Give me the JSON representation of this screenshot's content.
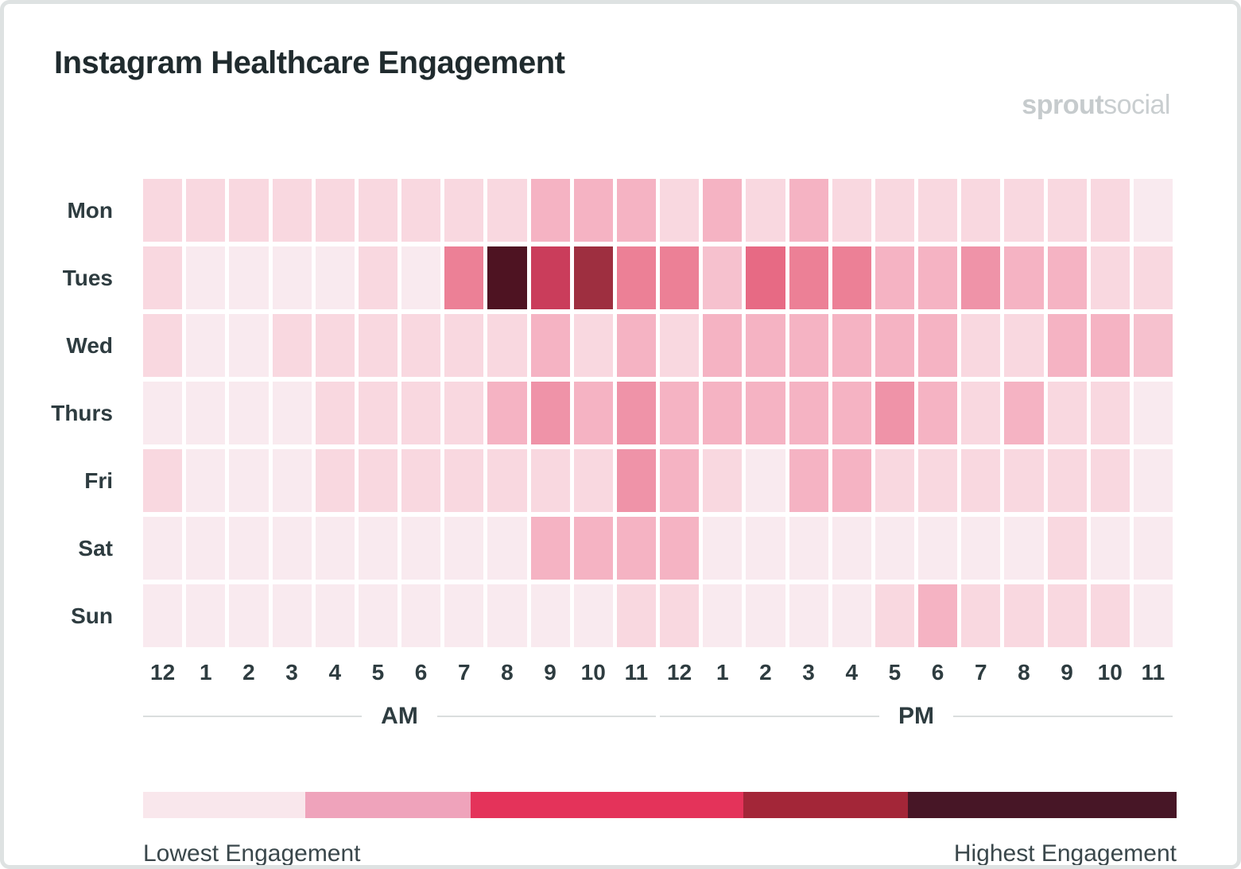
{
  "header": {
    "title": "Instagram Healthcare Engagement",
    "logo": {
      "bold": "sprout",
      "light": "social",
      "color": "#C6CBCD"
    }
  },
  "heatmap": {
    "days": [
      "Mon",
      "Tues",
      "Wed",
      "Thurs",
      "Fri",
      "Sat",
      "Sun"
    ],
    "hours": [
      "12",
      "1",
      "2",
      "3",
      "4",
      "5",
      "6",
      "7",
      "8",
      "9",
      "10",
      "11",
      "12",
      "1",
      "2",
      "3",
      "4",
      "5",
      "6",
      "7",
      "8",
      "9",
      "10",
      "11"
    ],
    "periods": {
      "am": "AM",
      "pm": "PM"
    }
  },
  "chart_data": {
    "type": "heatmap",
    "title": "Instagram Healthcare Engagement",
    "rows": [
      "Mon",
      "Tues",
      "Wed",
      "Thurs",
      "Fri",
      "Sat",
      "Sun"
    ],
    "columns": [
      "12 AM",
      "1 AM",
      "2 AM",
      "3 AM",
      "4 AM",
      "5 AM",
      "6 AM",
      "7 AM",
      "8 AM",
      "9 AM",
      "10 AM",
      "11 AM",
      "12 PM",
      "1 PM",
      "2 PM",
      "3 PM",
      "4 PM",
      "5 PM",
      "6 PM",
      "7 PM",
      "8 PM",
      "9 PM",
      "10 PM",
      "11 PM"
    ],
    "value_scale": "palette index 0 = lowest engagement, 9 = highest engagement",
    "palette": [
      "#F9EAEF",
      "#F9D8E0",
      "#F6C1CE",
      "#F5B3C3",
      "#EF93A8",
      "#EC8096",
      "#E76A84",
      "#CA3D5B",
      "#9E2F40",
      "#4E1322"
    ],
    "values": [
      [
        1,
        1,
        1,
        1,
        1,
        1,
        1,
        1,
        1,
        3,
        3,
        3,
        1,
        3,
        1,
        3,
        1,
        1,
        1,
        1,
        1,
        1,
        1,
        0
      ],
      [
        1,
        0,
        0,
        0,
        0,
        1,
        0,
        5,
        9,
        7,
        8,
        5,
        5,
        2,
        6,
        5,
        5,
        3,
        3,
        4,
        3,
        3,
        1,
        1
      ],
      [
        1,
        0,
        0,
        1,
        1,
        1,
        1,
        1,
        1,
        3,
        1,
        3,
        1,
        3,
        3,
        3,
        3,
        3,
        3,
        1,
        1,
        3,
        3,
        2
      ],
      [
        0,
        0,
        0,
        0,
        1,
        1,
        1,
        1,
        3,
        4,
        3,
        4,
        3,
        3,
        3,
        3,
        3,
        4,
        3,
        1,
        3,
        1,
        1,
        0
      ],
      [
        1,
        0,
        0,
        0,
        1,
        1,
        1,
        1,
        1,
        1,
        1,
        4,
        3,
        1,
        0,
        3,
        3,
        1,
        1,
        1,
        1,
        1,
        1,
        0
      ],
      [
        0,
        0,
        0,
        0,
        0,
        0,
        0,
        0,
        0,
        3,
        3,
        3,
        3,
        0,
        0,
        0,
        0,
        0,
        0,
        0,
        0,
        1,
        0,
        0
      ],
      [
        0,
        0,
        0,
        0,
        0,
        0,
        0,
        0,
        0,
        0,
        0,
        1,
        1,
        0,
        0,
        0,
        0,
        1,
        3,
        1,
        1,
        1,
        1,
        0
      ]
    ],
    "peak_cell": {
      "row": "Tues",
      "column": "8 AM"
    },
    "legend_position": "bottom"
  },
  "legend": {
    "segments": [
      {
        "color": "#F9E7EC",
        "width_pct": 15.7
      },
      {
        "color": "#EFA3BB",
        "width_pct": 16.0
      },
      {
        "color": "#E4335A",
        "width_pct": 26.4
      },
      {
        "color": "#A32638",
        "width_pct": 15.9
      },
      {
        "color": "#471626",
        "width_pct": 26.0
      }
    ],
    "lowest_label": "Lowest Engagement",
    "highest_label": "Highest Engagement"
  },
  "colors": {
    "title_text": "#202B2E",
    "axis_text": "#2E3C40",
    "legend_text": "#3A474B",
    "frame_border": "#DEE2E2",
    "divider_line": "#DADEDE",
    "background": "#FFFFFF"
  }
}
